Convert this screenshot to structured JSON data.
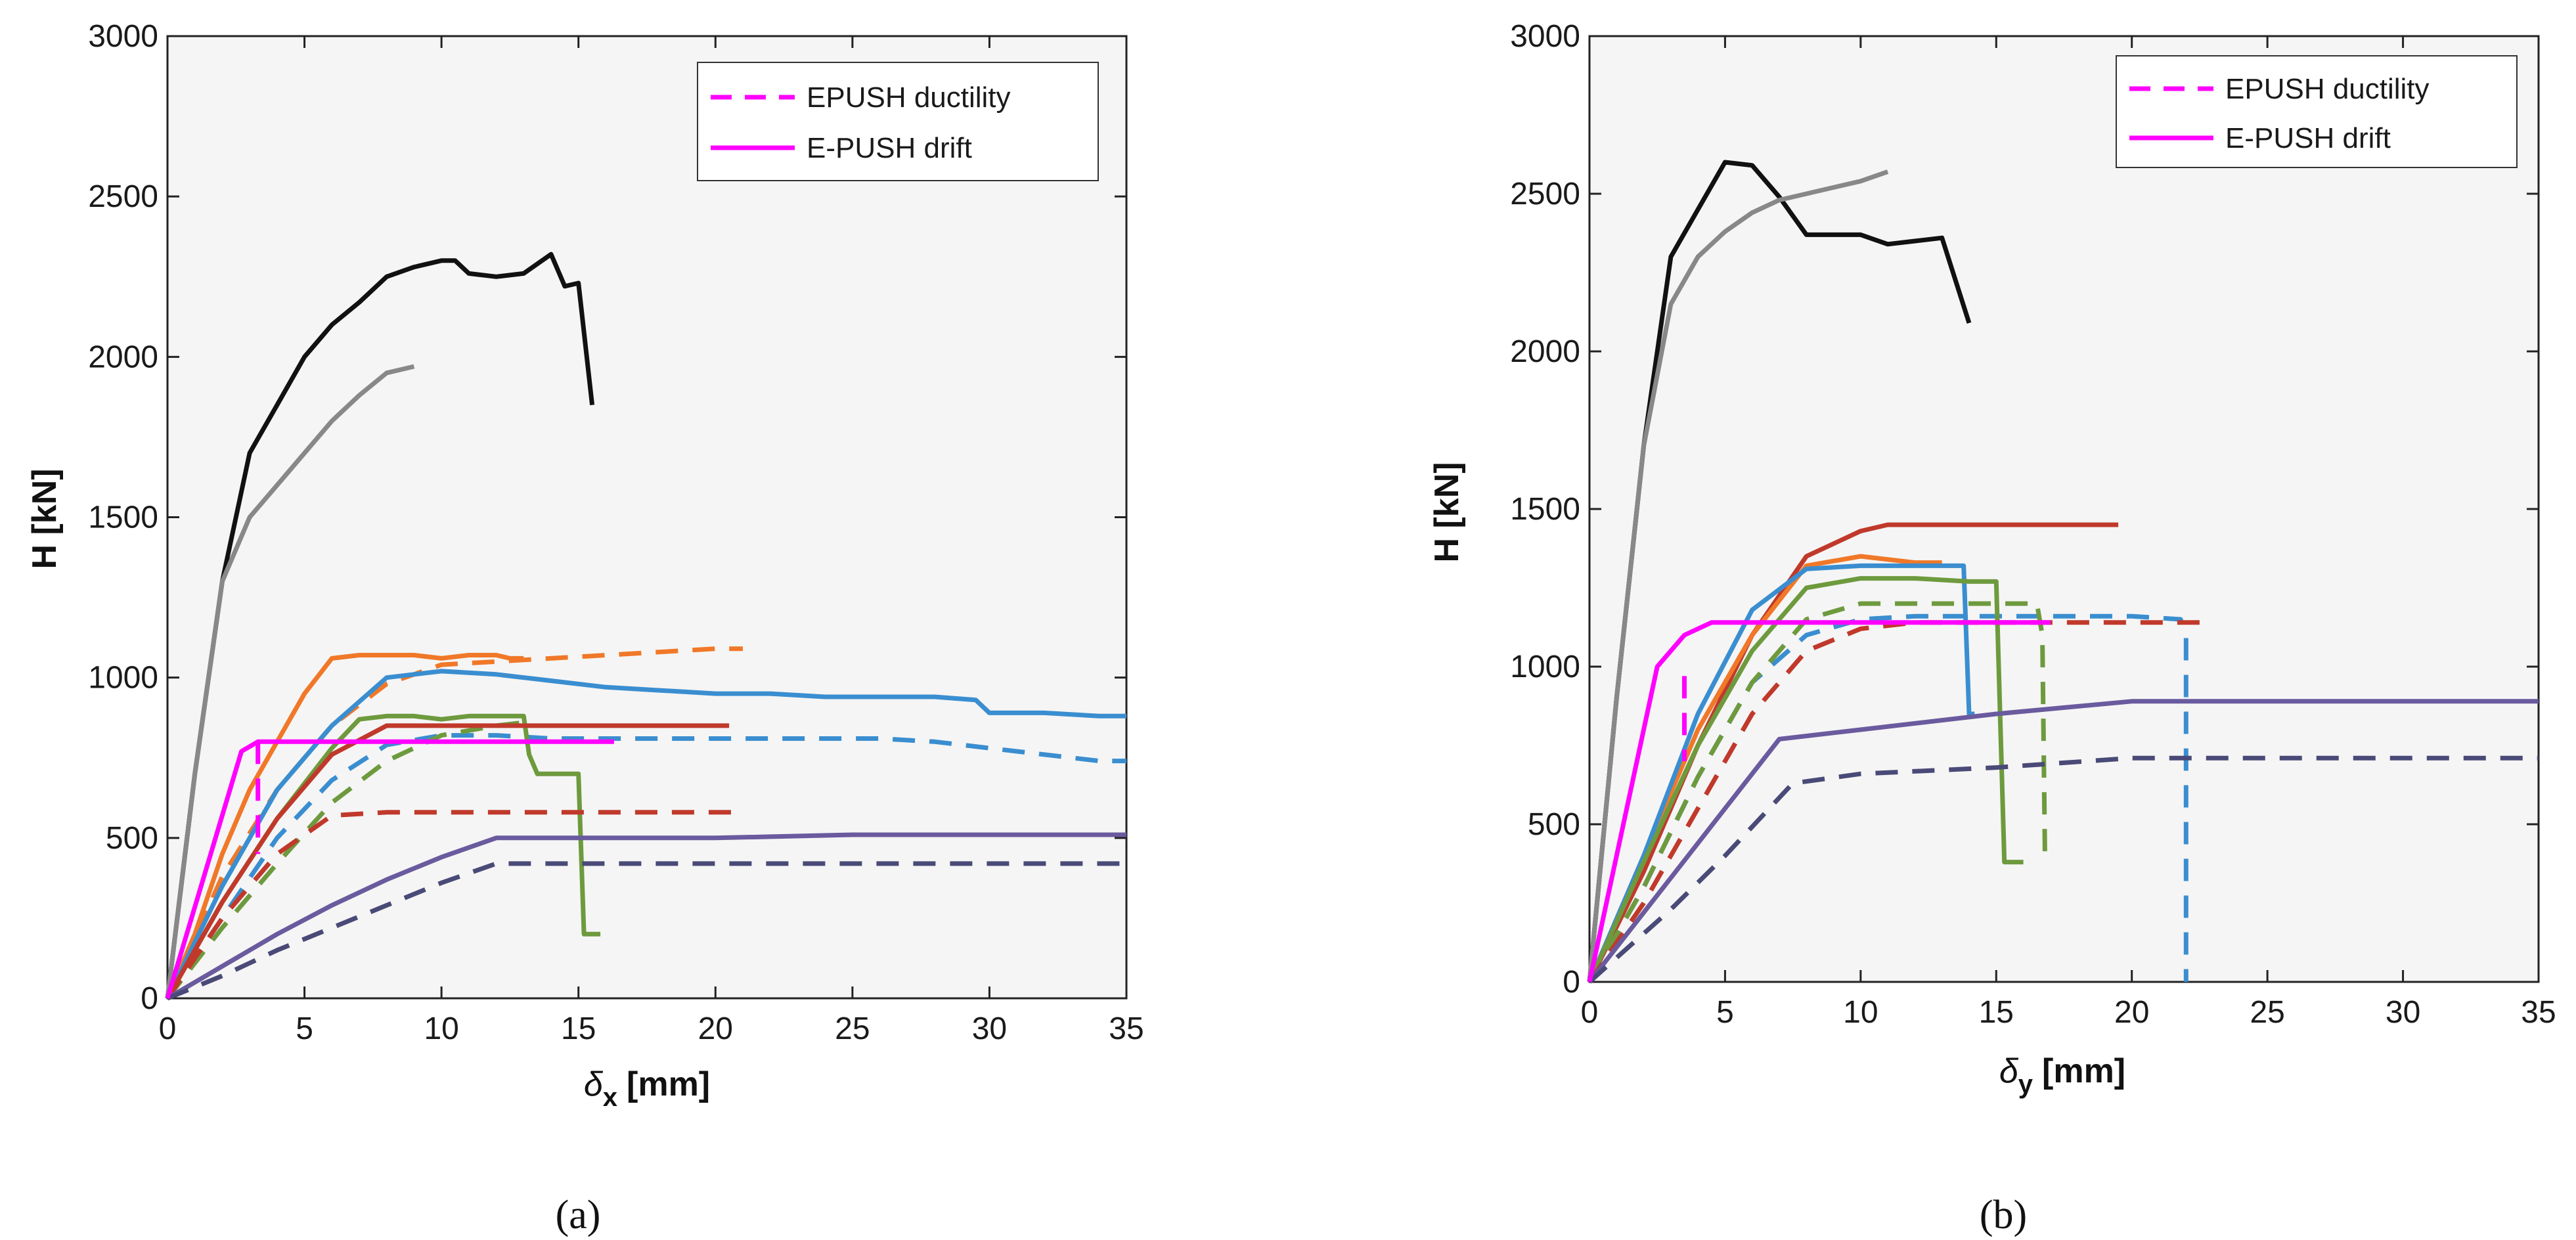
{
  "chart_data": [
    {
      "type": "line",
      "panel_label": "(a)",
      "title": "",
      "xlabel": "δx [mm]",
      "xlabel_symbol": "δ",
      "xlabel_sub": "x",
      "xlabel_unit": "[mm]",
      "ylabel": "H [kN]",
      "xlim": [
        0,
        35
      ],
      "ylim": [
        0,
        3000
      ],
      "xticks": [
        "0",
        "5",
        "10",
        "15",
        "20",
        "25",
        "30",
        "35"
      ],
      "yticks": [
        "0",
        "500",
        "1000",
        "1500",
        "2000",
        "2500",
        "3000"
      ],
      "legend": [
        {
          "name": "EPUSH ductility",
          "color": "#ff00ff",
          "dash": "dashed"
        },
        {
          "name": "E-PUSH drift",
          "color": "#ff00ff",
          "dash": "solid"
        }
      ],
      "series": [
        {
          "name": "black",
          "color": "#111111",
          "dash": "solid",
          "x": [
            0,
            1,
            2,
            3,
            4,
            5,
            6,
            7,
            8,
            9,
            10,
            10.5,
            11,
            12,
            13,
            14,
            14.5,
            15,
            15.5
          ],
          "y": [
            0,
            700,
            1300,
            1700,
            1850,
            2000,
            2100,
            2170,
            2250,
            2280,
            2300,
            2300,
            2260,
            2250,
            2260,
            2320,
            2220,
            2230,
            1850
          ]
        },
        {
          "name": "gray",
          "color": "#888888",
          "dash": "solid",
          "x": [
            0,
            1,
            2,
            3,
            4,
            5,
            6,
            7,
            8,
            9
          ],
          "y": [
            0,
            700,
            1300,
            1500,
            1600,
            1700,
            1800,
            1880,
            1950,
            1970
          ]
        },
        {
          "name": "orange",
          "color": "#f07828",
          "dash": "solid",
          "x": [
            0,
            1,
            2,
            3,
            4,
            5,
            6,
            7,
            8,
            9,
            10,
            11,
            12,
            12.5,
            13
          ],
          "y": [
            0,
            200,
            450,
            650,
            800,
            950,
            1060,
            1070,
            1070,
            1070,
            1060,
            1070,
            1070,
            1060,
            1060
          ]
        },
        {
          "name": "orange dashed",
          "color": "#f07828",
          "dash": "dashed",
          "x": [
            0,
            2,
            4,
            6,
            8,
            10,
            12,
            14,
            16,
            18,
            20,
            21
          ],
          "y": [
            0,
            380,
            650,
            850,
            980,
            1040,
            1050,
            1060,
            1070,
            1080,
            1090,
            1090
          ]
        },
        {
          "name": "blue",
          "color": "#3a8ed0",
          "dash": "solid",
          "x": [
            0,
            2,
            4,
            6,
            8,
            10,
            12,
            14,
            16,
            18,
            20,
            22,
            24,
            26,
            28,
            29.5,
            30,
            32,
            34,
            35
          ],
          "y": [
            0,
            350,
            650,
            850,
            1000,
            1020,
            1010,
            990,
            970,
            960,
            950,
            950,
            940,
            940,
            940,
            930,
            890,
            890,
            880,
            880
          ]
        },
        {
          "name": "blue dashed",
          "color": "#3a8ed0",
          "dash": "dashed",
          "x": [
            0,
            2,
            4,
            6,
            8,
            10,
            12,
            14,
            16,
            18,
            20,
            22,
            24,
            26,
            28,
            30,
            32,
            34,
            35
          ],
          "y": [
            0,
            250,
            500,
            680,
            790,
            820,
            820,
            810,
            810,
            810,
            810,
            810,
            810,
            810,
            800,
            780,
            760,
            740,
            740
          ]
        },
        {
          "name": "green",
          "color": "#6e9a3e",
          "dash": "solid",
          "x": [
            0,
            2,
            4,
            6,
            7,
            8,
            9,
            10,
            11,
            12,
            13,
            13.2,
            13.5,
            14,
            15,
            15.2,
            15.5,
            15.8
          ],
          "y": [
            0,
            300,
            560,
            780,
            870,
            880,
            880,
            870,
            880,
            880,
            880,
            760,
            700,
            700,
            700,
            200,
            200,
            200
          ]
        },
        {
          "name": "green dashed",
          "color": "#6e9a3e",
          "dash": "dashed",
          "x": [
            0,
            2,
            4,
            6,
            8,
            10,
            12,
            13
          ],
          "y": [
            0,
            220,
            420,
            610,
            740,
            820,
            850,
            860
          ]
        },
        {
          "name": "red",
          "color": "#c0392b",
          "dash": "solid",
          "x": [
            0,
            2,
            4,
            6,
            8,
            10,
            12,
            14,
            16,
            18,
            20,
            20.5
          ],
          "y": [
            0,
            300,
            560,
            760,
            850,
            850,
            850,
            850,
            850,
            850,
            850,
            850
          ]
        },
        {
          "name": "red dashed",
          "color": "#c0392b",
          "dash": "dashed",
          "x": [
            0,
            2,
            4,
            6,
            8,
            10,
            12,
            14,
            16,
            18,
            21
          ],
          "y": [
            0,
            250,
            450,
            570,
            580,
            580,
            580,
            580,
            580,
            580,
            580
          ]
        },
        {
          "name": "purple",
          "color": "#6a5a9e",
          "dash": "solid",
          "x": [
            0,
            2,
            4,
            6,
            8,
            10,
            12,
            14,
            16,
            18,
            20,
            25,
            30,
            35
          ],
          "y": [
            0,
            100,
            200,
            290,
            370,
            440,
            500,
            500,
            500,
            500,
            500,
            510,
            510,
            510
          ]
        },
        {
          "name": "purple dashed",
          "color": "#4a4a78",
          "dash": "dashed",
          "x": [
            0,
            2,
            4,
            6,
            8,
            10,
            12,
            14,
            16,
            18,
            20,
            25,
            30,
            35
          ],
          "y": [
            0,
            70,
            150,
            220,
            290,
            360,
            420,
            420,
            420,
            420,
            420,
            420,
            420,
            420
          ]
        },
        {
          "name": "E-PUSH drift",
          "color": "#ff00ff",
          "dash": "solid",
          "x": [
            0,
            2.7,
            3.3,
            16.3
          ],
          "y": [
            0,
            770,
            800,
            800
          ]
        },
        {
          "name": "EPUSH ductility",
          "color": "#ff00ff",
          "dash": "dashed",
          "x": [
            3.3,
            3.3
          ],
          "y": [
            800,
            450
          ]
        }
      ]
    },
    {
      "type": "line",
      "panel_label": "(b)",
      "title": "",
      "xlabel": "δy [mm]",
      "xlabel_symbol": "δ",
      "xlabel_sub": "y",
      "xlabel_unit": "[mm]",
      "ylabel": "H [kN]",
      "xlim": [
        0,
        35
      ],
      "ylim": [
        0,
        3000
      ],
      "xticks": [
        "0",
        "5",
        "10",
        "15",
        "20",
        "25",
        "30",
        "35"
      ],
      "yticks": [
        "0",
        "500",
        "1000",
        "1500",
        "2000",
        "2500",
        "3000"
      ],
      "legend": [
        {
          "name": "EPUSH ductility",
          "color": "#ff00ff",
          "dash": "dashed"
        },
        {
          "name": "E-PUSH drift",
          "color": "#ff00ff",
          "dash": "solid"
        }
      ],
      "series": [
        {
          "name": "black",
          "color": "#111111",
          "dash": "solid",
          "x": [
            0,
            1,
            2,
            3,
            4,
            5,
            6,
            7,
            8,
            9,
            10,
            11,
            12,
            13,
            14
          ],
          "y": [
            0,
            900,
            1700,
            2300,
            2450,
            2600,
            2590,
            2490,
            2370,
            2370,
            2370,
            2340,
            2350,
            2360,
            2090
          ]
        },
        {
          "name": "gray",
          "color": "#888888",
          "dash": "solid",
          "x": [
            0,
            1,
            2,
            3,
            4,
            5,
            6,
            7,
            8,
            9,
            10,
            11
          ],
          "y": [
            0,
            900,
            1700,
            2150,
            2300,
            2380,
            2440,
            2480,
            2500,
            2520,
            2540,
            2570
          ]
        },
        {
          "name": "red",
          "color": "#c0392b",
          "dash": "solid",
          "x": [
            0,
            2,
            4,
            6,
            8,
            10,
            11,
            14,
            17,
            19.5
          ],
          "y": [
            0,
            350,
            750,
            1100,
            1350,
            1430,
            1450,
            1450,
            1450,
            1450
          ]
        },
        {
          "name": "orange",
          "color": "#f07828",
          "dash": "solid",
          "x": [
            0,
            2,
            4,
            6,
            8,
            10,
            12,
            13
          ],
          "y": [
            0,
            400,
            800,
            1100,
            1320,
            1350,
            1330,
            1330
          ]
        },
        {
          "name": "blue",
          "color": "#3a8ed0",
          "dash": "solid",
          "x": [
            0,
            2,
            4,
            6,
            8,
            10,
            12,
            13.8,
            14,
            14.2
          ],
          "y": [
            0,
            400,
            850,
            1180,
            1310,
            1320,
            1320,
            1320,
            850,
            850
          ]
        },
        {
          "name": "blue dashed",
          "color": "#3a8ed0",
          "dash": "dashed",
          "x": [
            0,
            2,
            4,
            6,
            8,
            10,
            12,
            14,
            16,
            18,
            20,
            21.8,
            22,
            22
          ],
          "y": [
            0,
            300,
            650,
            950,
            1100,
            1150,
            1160,
            1160,
            1160,
            1160,
            1160,
            1150,
            1100,
            0
          ]
        },
        {
          "name": "green",
          "color": "#6e9a3e",
          "dash": "solid",
          "x": [
            0,
            2,
            4,
            6,
            8,
            10,
            12,
            14,
            15,
            15.3,
            15.6,
            16
          ],
          "y": [
            0,
            380,
            750,
            1050,
            1250,
            1280,
            1280,
            1270,
            1270,
            380,
            380,
            380
          ]
        },
        {
          "name": "green dashed",
          "color": "#6e9a3e",
          "dash": "dashed",
          "x": [
            0,
            2,
            4,
            6,
            8,
            10,
            12,
            14,
            16,
            16.5,
            16.7,
            16.8
          ],
          "y": [
            0,
            300,
            650,
            950,
            1150,
            1200,
            1200,
            1200,
            1200,
            1200,
            1100,
            380
          ]
        },
        {
          "name": "red dashed",
          "color": "#c0392b",
          "dash": "dashed",
          "x": [
            0,
            2,
            4,
            6,
            8,
            10,
            12,
            14,
            16,
            18,
            20,
            22,
            23
          ],
          "y": [
            0,
            250,
            550,
            850,
            1050,
            1120,
            1140,
            1140,
            1140,
            1140,
            1140,
            1140,
            1140
          ]
        },
        {
          "name": "purple",
          "color": "#6a5a9e",
          "dash": "solid",
          "x": [
            0,
            3,
            5,
            7,
            10,
            15,
            20,
            25,
            30,
            35
          ],
          "y": [
            0,
            330,
            550,
            770,
            800,
            850,
            890,
            890,
            890,
            890
          ]
        },
        {
          "name": "purple dashed",
          "color": "#4a4a78",
          "dash": "dashed",
          "x": [
            0,
            3,
            5,
            7.5,
            10,
            15,
            20,
            25,
            30,
            35
          ],
          "y": [
            0,
            230,
            400,
            630,
            660,
            680,
            710,
            710,
            710,
            710
          ]
        },
        {
          "name": "E-PUSH drift",
          "color": "#ff00ff",
          "dash": "solid",
          "x": [
            0,
            2.5,
            3.5,
            4.5,
            17
          ],
          "y": [
            0,
            1000,
            1100,
            1140,
            1140
          ]
        },
        {
          "name": "EPUSH ductility",
          "color": "#ff00ff",
          "dash": "dashed",
          "x": [
            3.5,
            3.5
          ],
          "y": [
            970,
            700
          ]
        }
      ]
    }
  ]
}
